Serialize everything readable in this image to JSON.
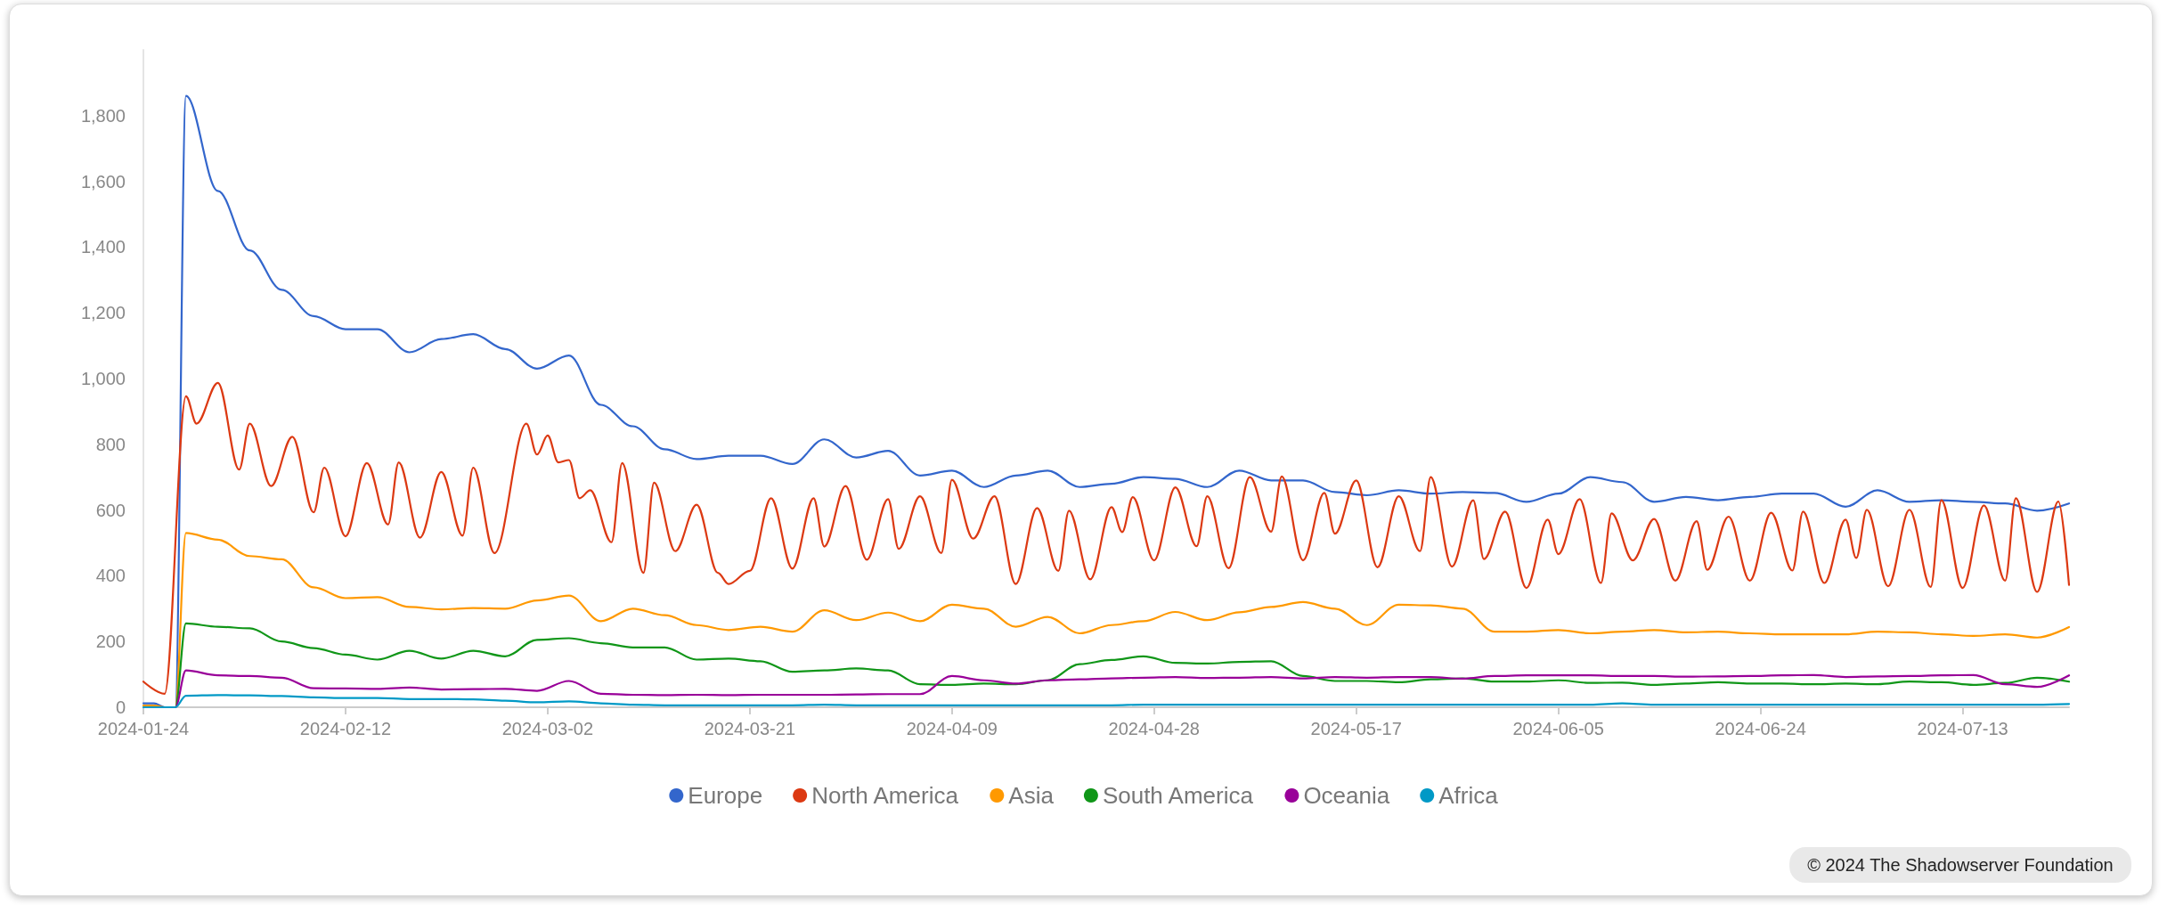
{
  "chart_data": {
    "type": "line",
    "x": [
      "2024-01-24",
      "2024-01-25",
      "2024-01-26",
      "2024-01-27",
      "2024-01-28",
      "2024-01-31",
      "2024-02-03",
      "2024-02-06",
      "2024-02-09",
      "2024-02-12",
      "2024-02-15",
      "2024-02-18",
      "2024-02-21",
      "2024-02-24",
      "2024-02-27",
      "2024-03-01",
      "2024-03-04",
      "2024-03-07",
      "2024-03-10",
      "2024-03-13",
      "2024-03-16",
      "2024-03-19",
      "2024-03-22",
      "2024-03-25",
      "2024-03-28",
      "2024-03-31",
      "2024-04-03",
      "2024-04-06",
      "2024-04-09",
      "2024-04-12",
      "2024-04-15",
      "2024-04-18",
      "2024-04-21",
      "2024-04-24",
      "2024-04-27",
      "2024-04-30",
      "2024-05-03",
      "2024-05-06",
      "2024-05-09",
      "2024-05-12",
      "2024-05-15",
      "2024-05-18",
      "2024-05-21",
      "2024-05-24",
      "2024-05-27",
      "2024-05-30",
      "2024-06-02",
      "2024-06-05",
      "2024-06-08",
      "2024-06-11",
      "2024-06-14",
      "2024-06-17",
      "2024-06-20",
      "2024-06-23",
      "2024-06-26",
      "2024-06-29",
      "2024-07-02",
      "2024-07-05",
      "2024-07-08",
      "2024-07-11",
      "2024-07-14",
      "2024-07-17",
      "2024-07-20",
      "2024-07-23"
    ],
    "series": [
      {
        "name": "Europe",
        "color": "#3366cc",
        "values": [
          12,
          12,
          0,
          0,
          1860,
          1571,
          1390,
          1270,
          1190,
          1150,
          1150,
          1080,
          1120,
          1135,
          1090,
          1030,
          1070,
          920,
          855,
          785,
          755,
          765,
          765,
          740,
          815,
          760,
          780,
          705,
          720,
          670,
          705,
          720,
          670,
          680,
          700,
          695,
          670,
          720,
          690,
          690,
          655,
          645,
          660,
          650,
          655,
          652,
          625,
          650,
          700,
          685,
          625,
          640,
          630,
          640,
          650,
          650,
          610,
          660,
          625,
          630,
          625,
          620,
          598,
          620
        ]
      },
      {
        "name": "North America",
        "color": "#dc3912",
        "x": [
          "2024-01-24",
          "2024-01-26",
          "2024-01-28",
          "2024-01-29",
          "2024-01-31",
          "2024-02-02",
          "2024-02-03",
          "2024-02-05",
          "2024-02-07",
          "2024-02-09",
          "2024-02-10",
          "2024-02-12",
          "2024-02-14",
          "2024-02-16",
          "2024-02-17",
          "2024-02-19",
          "2024-02-21",
          "2024-02-23",
          "2024-02-24",
          "2024-02-26",
          "2024-02-29",
          "2024-03-01",
          "2024-03-02",
          "2024-03-03",
          "2024-03-04",
          "2024-03-05",
          "2024-03-06",
          "2024-03-08",
          "2024-03-09",
          "2024-03-11",
          "2024-03-12",
          "2024-03-14",
          "2024-03-16",
          "2024-03-18",
          "2024-03-19",
          "2024-03-21",
          "2024-03-23",
          "2024-03-25",
          "2024-03-27",
          "2024-03-28",
          "2024-03-30",
          "2024-04-01",
          "2024-04-03",
          "2024-04-04",
          "2024-04-06",
          "2024-04-08",
          "2024-04-09",
          "2024-04-11",
          "2024-04-13",
          "2024-04-15",
          "2024-04-17",
          "2024-04-19",
          "2024-04-20",
          "2024-04-22",
          "2024-04-24",
          "2024-04-25",
          "2024-04-26",
          "2024-04-28",
          "2024-04-30",
          "2024-05-02",
          "2024-05-03",
          "2024-05-05",
          "2024-05-07",
          "2024-05-09",
          "2024-05-10",
          "2024-05-12",
          "2024-05-14",
          "2024-05-15",
          "2024-05-17",
          "2024-05-19",
          "2024-05-21",
          "2024-05-23",
          "2024-05-24",
          "2024-05-26",
          "2024-05-28",
          "2024-05-29",
          "2024-05-31",
          "2024-06-02",
          "2024-06-04",
          "2024-06-05",
          "2024-06-07",
          "2024-06-09",
          "2024-06-10",
          "2024-06-12",
          "2024-06-14",
          "2024-06-16",
          "2024-06-18",
          "2024-06-19",
          "2024-06-21",
          "2024-06-23",
          "2024-06-25",
          "2024-06-27",
          "2024-06-28",
          "2024-06-30",
          "2024-07-02",
          "2024-07-03",
          "2024-07-04",
          "2024-07-06",
          "2024-07-08",
          "2024-07-10",
          "2024-07-11",
          "2024-07-13",
          "2024-07-15",
          "2024-07-17",
          "2024-07-18",
          "2024-07-20",
          "2024-07-22",
          "2024-07-23"
        ],
        "values": [
          78,
          41,
          946,
          863,
          987,
          723,
          863,
          673,
          823,
          593,
          729,
          520,
          743,
          556,
          745,
          516,
          716,
          522,
          729,
          469,
          863,
          769,
          827,
          745,
          752,
          636,
          660,
          502,
          743,
          409,
          683,
          475,
          616,
          409,
          375,
          415,
          636,
          422,
          636,
          489,
          673,
          449,
          633,
          482,
          642,
          469,
          692,
          513,
          642,
          375,
          606,
          415,
          598,
          389,
          609,
          533,
          639,
          447,
          669,
          490,
          642,
          423,
          700,
          534,
          702,
          447,
          652,
          528,
          690,
          426,
          642,
          475,
          700,
          428,
          630,
          451,
          595,
          363,
          571,
          466,
          633,
          378,
          590,
          447,
          573,
          385,
          566,
          418,
          580,
          385,
          592,
          416,
          595,
          378,
          571,
          454,
          601,
          368,
          601,
          366,
          630,
          363,
          614,
          385,
          636,
          351,
          626,
          372
        ]
      },
      {
        "name": "Asia",
        "color": "#ff9900",
        "values": [
          5,
          5,
          0,
          0,
          530,
          510,
          460,
          450,
          365,
          332,
          335,
          305,
          298,
          302,
          300,
          325,
          340,
          262,
          300,
          280,
          250,
          235,
          245,
          230,
          295,
          265,
          288,
          262,
          312,
          300,
          245,
          275,
          225,
          250,
          262,
          290,
          265,
          289,
          305,
          320,
          300,
          250,
          312,
          310,
          300,
          230,
          230,
          235,
          225,
          230,
          235,
          228,
          230,
          225,
          222,
          222,
          222,
          230,
          228,
          222,
          217,
          222,
          212,
          244
        ]
      },
      {
        "name": "South America",
        "color": "#109618",
        "values": [
          null,
          null,
          0,
          0,
          255,
          245,
          240,
          200,
          180,
          160,
          145,
          172,
          148,
          172,
          155,
          205,
          210,
          195,
          182,
          182,
          145,
          148,
          140,
          108,
          112,
          118,
          112,
          70,
          68,
          72,
          70,
          82,
          131,
          144,
          155,
          135,
          133,
          138,
          140,
          95,
          80,
          80,
          76,
          85,
          88,
          78,
          78,
          82,
          74,
          75,
          68,
          72,
          76,
          72,
          72,
          70,
          72,
          70,
          78,
          76,
          68,
          74,
          90,
          78
        ]
      },
      {
        "name": "Oceania",
        "color": "#990099",
        "values": [
          null,
          null,
          0,
          0,
          112,
          97,
          95,
          90,
          58,
          57,
          56,
          60,
          54,
          55,
          56,
          50,
          80,
          41,
          38,
          37,
          38,
          37,
          38,
          38,
          38,
          39,
          40,
          40,
          95,
          82,
          72,
          82,
          85,
          88,
          90,
          92,
          89,
          90,
          92,
          88,
          92,
          90,
          92,
          92,
          87,
          95,
          97,
          97,
          97,
          95,
          95,
          93,
          94,
          95,
          97,
          98,
          92,
          94,
          95,
          97,
          98,
          70,
          62,
          97
        ]
      },
      {
        "name": "Africa",
        "color": "#0099c6",
        "values": [
          0,
          0,
          0,
          0,
          35,
          37,
          36,
          34,
          30,
          28,
          28,
          25,
          25,
          24,
          20,
          15,
          18,
          12,
          8,
          6,
          6,
          6,
          6,
          6,
          8,
          6,
          6,
          6,
          6,
          6,
          6,
          6,
          6,
          6,
          8,
          8,
          8,
          8,
          8,
          8,
          8,
          8,
          8,
          8,
          8,
          8,
          8,
          8,
          8,
          12,
          8,
          8,
          8,
          8,
          8,
          8,
          8,
          8,
          8,
          8,
          8,
          8,
          8,
          10
        ]
      }
    ],
    "xlim": [
      "2024-01-24",
      "2024-07-23"
    ],
    "xticks": [
      "2024-01-24",
      "2024-02-12",
      "2024-03-02",
      "2024-03-21",
      "2024-04-09",
      "2024-04-28",
      "2024-05-17",
      "2024-06-05",
      "2024-06-24",
      "2024-07-13"
    ],
    "ylim": [
      0,
      2000
    ],
    "yticks": [
      0,
      {
        "value": 200,
        "label": "200"
      },
      {
        "value": 400,
        "label": "400"
      },
      {
        "value": 600,
        "label": "600"
      },
      {
        "value": 800,
        "label": "800"
      },
      {
        "value": 1000,
        "label": "1,000"
      },
      {
        "value": 1200,
        "label": "1,200"
      },
      {
        "value": 1400,
        "label": "1,400"
      },
      {
        "value": 1600,
        "label": "1,600"
      },
      {
        "value": 1800,
        "label": "1,800"
      }
    ],
    "legend": "bottom",
    "marker": "none",
    "line_style": "solid",
    "annotations": [
      "© 2024 The Shadowserver Foundation"
    ]
  }
}
